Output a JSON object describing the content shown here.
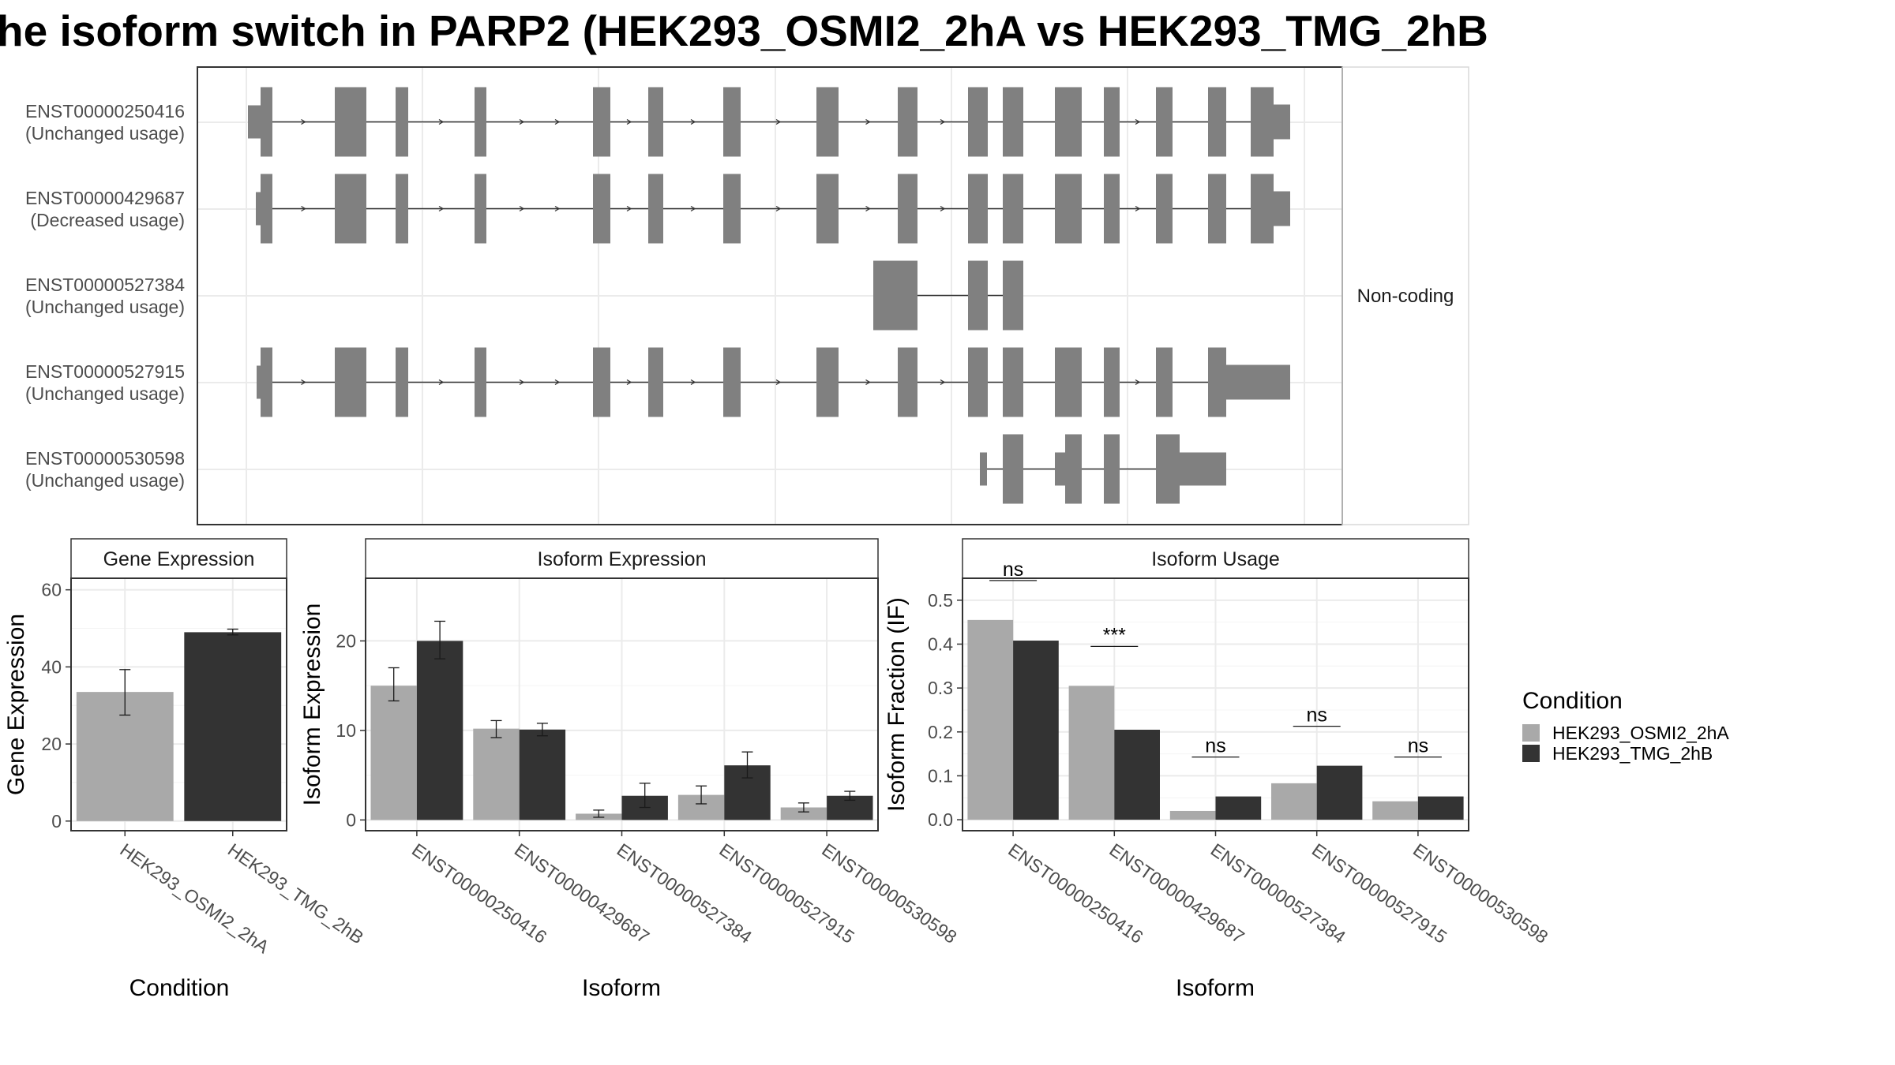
{
  "title": "he isoform switch in PARP2 (HEK293_OSMI2_2hA vs HEK293_TMG_2hB",
  "colors": {
    "osmi": "#a9a9a9",
    "tmg": "#333333",
    "exon": "#808080",
    "strip_fill": "#ffffff",
    "grid": "#ebebeb",
    "border": "#333333"
  },
  "legend": {
    "title": "Condition",
    "items": [
      "HEK293_OSMI2_2hA",
      "HEK293_TMG_2hB"
    ]
  },
  "chart_data": [
    {
      "type": "gene-structure",
      "transcripts": [
        {
          "id": "ENST00000250416",
          "usage": "(Unchanged usage)",
          "coding": true
        },
        {
          "id": "ENST00000429687",
          "usage": "(Decreased usage)",
          "coding": true
        },
        {
          "id": "ENST00000527384",
          "usage": "(Unchanged usage)",
          "coding": false
        },
        {
          "id": "ENST00000527915",
          "usage": "(Unchanged usage)",
          "coding": true
        },
        {
          "id": "ENST00000530598",
          "usage": "(Unchanged usage)",
          "coding": true
        }
      ],
      "side_label": "Non-coding"
    },
    {
      "type": "bar",
      "title": "Gene Expression",
      "xlabel": "Condition",
      "ylabel": "Gene Expression",
      "categories": [
        "HEK293_OSMI2_2hA",
        "HEK293_TMG_2hB"
      ],
      "values": [
        33.5,
        49.0
      ],
      "err_low": [
        27.5,
        48.3
      ],
      "err_high": [
        39.3,
        49.8
      ],
      "ylim": [
        -2.5,
        63
      ],
      "yticks": [
        0,
        20,
        40,
        60
      ]
    },
    {
      "type": "bar",
      "title": "Isoform Expression",
      "xlabel": "Isoform",
      "ylabel": "Isoform Expression",
      "categories": [
        "ENST00000250416",
        "ENST00000429687",
        "ENST00000527384",
        "ENST00000527915",
        "ENST00000530598"
      ],
      "series": [
        {
          "name": "HEK293_OSMI2_2hA",
          "values": [
            15.0,
            10.2,
            0.7,
            2.8,
            1.4
          ],
          "err_low": [
            13.3,
            9.2,
            0.3,
            1.8,
            0.9
          ],
          "err_high": [
            17.0,
            11.1,
            1.1,
            3.8,
            1.9
          ]
        },
        {
          "name": "HEK293_TMG_2hB",
          "values": [
            20.0,
            10.1,
            2.7,
            6.1,
            2.7
          ],
          "err_low": [
            18.0,
            9.4,
            1.4,
            4.7,
            2.2
          ],
          "err_high": [
            22.2,
            10.8,
            4.1,
            7.6,
            3.2
          ]
        }
      ],
      "ylim": [
        -1.2,
        27
      ],
      "yticks": [
        0,
        10,
        20
      ]
    },
    {
      "type": "bar",
      "title": "Isoform Usage",
      "xlabel": "Isoform",
      "ylabel": "Isoform Fraction (IF)",
      "categories": [
        "ENST00000250416",
        "ENST00000429687",
        "ENST00000527384",
        "ENST00000527915",
        "ENST00000530598"
      ],
      "series": [
        {
          "name": "HEK293_OSMI2_2hA",
          "values": [
            0.455,
            0.305,
            0.02,
            0.083,
            0.042
          ]
        },
        {
          "name": "HEK293_TMG_2hB",
          "values": [
            0.408,
            0.205,
            0.053,
            0.123,
            0.053
          ]
        }
      ],
      "significance": [
        "ns",
        "***",
        "ns",
        "ns",
        "ns"
      ],
      "ylim": [
        -0.025,
        0.55
      ],
      "yticks": [
        0.0,
        0.1,
        0.2,
        0.3,
        0.4,
        0.5
      ],
      "ytick_labels": [
        "0.0",
        "0.1",
        "0.2",
        "0.3",
        "0.4",
        "0.5"
      ]
    }
  ]
}
